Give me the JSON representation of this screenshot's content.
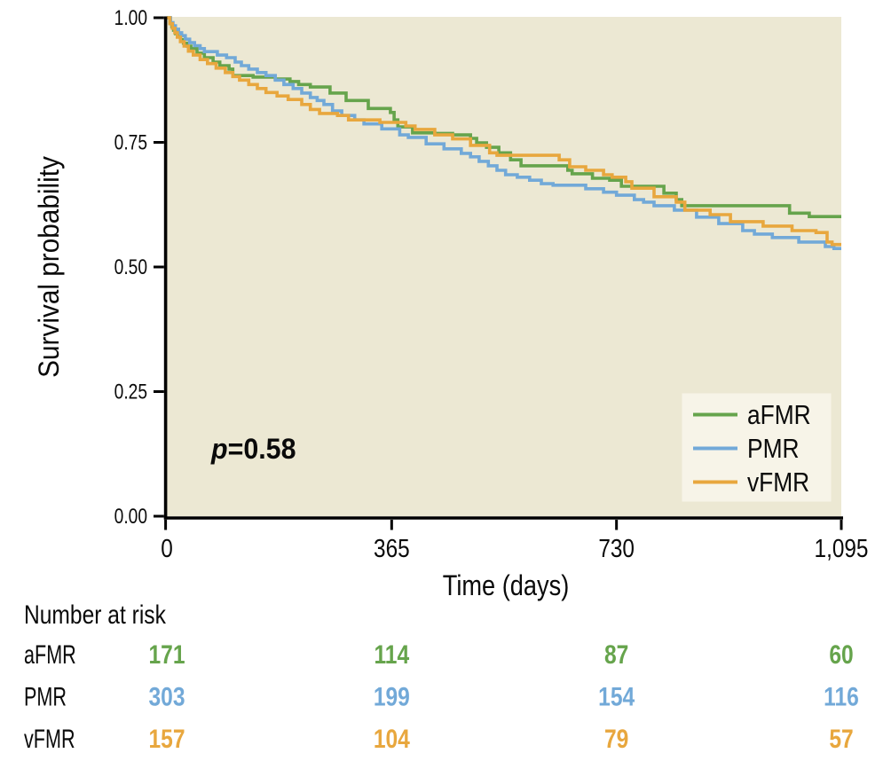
{
  "colors": {
    "plot_bg": "#ece8d3",
    "legend_bg": "#f7f4e8",
    "axis": "#000000",
    "text": "#0a0a0a"
  },
  "chart_data": {
    "type": "line",
    "subtype": "kaplan-meier-step",
    "title": "",
    "xlabel": "Time (days)",
    "ylabel": "Survival probability",
    "xlim": [
      0,
      1095
    ],
    "ylim": [
      0.0,
      1.0
    ],
    "grid": false,
    "legend_position": "bottom-right-inside",
    "xticks": [
      {
        "value": 0,
        "label": "0"
      },
      {
        "value": 365,
        "label": "365"
      },
      {
        "value": 730,
        "label": "730"
      },
      {
        "value": 1095,
        "label": "1,095"
      }
    ],
    "yticks": [
      {
        "value": 1.0,
        "label": "1.00"
      },
      {
        "value": 0.75,
        "label": "0.75"
      },
      {
        "value": 0.5,
        "label": "0.50"
      },
      {
        "value": 0.25,
        "label": "0.25"
      },
      {
        "value": 0.0,
        "label": "0.00"
      }
    ],
    "p_value": {
      "prefix": "p",
      "rest": "=0.58"
    },
    "series": [
      {
        "name": "aFMR",
        "color": "#66a44c",
        "points": [
          [
            0,
            1.0
          ],
          [
            5,
            0.989
          ],
          [
            8,
            0.982
          ],
          [
            11,
            0.975
          ],
          [
            14,
            0.968
          ],
          [
            18,
            0.962
          ],
          [
            22,
            0.956
          ],
          [
            27,
            0.949
          ],
          [
            33,
            0.943
          ],
          [
            39,
            0.938
          ],
          [
            49,
            0.929
          ],
          [
            61,
            0.92
          ],
          [
            75,
            0.911
          ],
          [
            86,
            0.904
          ],
          [
            101,
            0.897
          ],
          [
            107,
            0.884
          ],
          [
            140,
            0.881
          ],
          [
            176,
            0.877
          ],
          [
            200,
            0.872
          ],
          [
            214,
            0.866
          ],
          [
            233,
            0.861
          ],
          [
            265,
            0.849
          ],
          [
            291,
            0.834
          ],
          [
            327,
            0.818
          ],
          [
            363,
            0.81
          ],
          [
            369,
            0.795
          ],
          [
            375,
            0.781
          ],
          [
            399,
            0.769
          ],
          [
            435,
            0.768
          ],
          [
            464,
            0.765
          ],
          [
            493,
            0.758
          ],
          [
            503,
            0.749
          ],
          [
            519,
            0.74
          ],
          [
            539,
            0.729
          ],
          [
            558,
            0.715
          ],
          [
            575,
            0.703
          ],
          [
            651,
            0.694
          ],
          [
            658,
            0.687
          ],
          [
            691,
            0.678
          ],
          [
            719,
            0.674
          ],
          [
            738,
            0.662
          ],
          [
            807,
            0.648
          ],
          [
            827,
            0.635
          ],
          [
            836,
            0.623
          ],
          [
            1011,
            0.608
          ],
          [
            1043,
            0.601
          ]
        ]
      },
      {
        "name": "PMR",
        "color": "#72a9d8",
        "points": [
          [
            0,
            1.0
          ],
          [
            6,
            0.99
          ],
          [
            10,
            0.984
          ],
          [
            14,
            0.977
          ],
          [
            19,
            0.97
          ],
          [
            24,
            0.964
          ],
          [
            30,
            0.957
          ],
          [
            37,
            0.95
          ],
          [
            45,
            0.944
          ],
          [
            54,
            0.938
          ],
          [
            61,
            0.932
          ],
          [
            82,
            0.925
          ],
          [
            97,
            0.92
          ],
          [
            111,
            0.911
          ],
          [
            121,
            0.904
          ],
          [
            133,
            0.897
          ],
          [
            147,
            0.89
          ],
          [
            161,
            0.884
          ],
          [
            176,
            0.875
          ],
          [
            190,
            0.866
          ],
          [
            205,
            0.858
          ],
          [
            219,
            0.849
          ],
          [
            233,
            0.84
          ],
          [
            244,
            0.834
          ],
          [
            255,
            0.826
          ],
          [
            269,
            0.813
          ],
          [
            284,
            0.804
          ],
          [
            305,
            0.795
          ],
          [
            320,
            0.787
          ],
          [
            349,
            0.777
          ],
          [
            378,
            0.765
          ],
          [
            392,
            0.76
          ],
          [
            421,
            0.747
          ],
          [
            450,
            0.737
          ],
          [
            478,
            0.728
          ],
          [
            493,
            0.721
          ],
          [
            507,
            0.712
          ],
          [
            522,
            0.703
          ],
          [
            536,
            0.694
          ],
          [
            550,
            0.685
          ],
          [
            569,
            0.68
          ],
          [
            589,
            0.674
          ],
          [
            608,
            0.667
          ],
          [
            627,
            0.664
          ],
          [
            680,
            0.657
          ],
          [
            709,
            0.65
          ],
          [
            730,
            0.644
          ],
          [
            759,
            0.635
          ],
          [
            774,
            0.63
          ],
          [
            791,
            0.623
          ],
          [
            824,
            0.614
          ],
          [
            860,
            0.6
          ],
          [
            896,
            0.587
          ],
          [
            935,
            0.573
          ],
          [
            954,
            0.566
          ],
          [
            983,
            0.559
          ],
          [
            1026,
            0.55
          ],
          [
            1069,
            0.541
          ],
          [
            1083,
            0.537
          ]
        ]
      },
      {
        "name": "vFMR",
        "color": "#e8a73e",
        "points": [
          [
            0,
            1.0
          ],
          [
            5,
            0.988
          ],
          [
            9,
            0.979
          ],
          [
            13,
            0.97
          ],
          [
            17,
            0.961
          ],
          [
            22,
            0.952
          ],
          [
            28,
            0.943
          ],
          [
            35,
            0.933
          ],
          [
            43,
            0.925
          ],
          [
            54,
            0.916
          ],
          [
            66,
            0.908
          ],
          [
            80,
            0.899
          ],
          [
            95,
            0.89
          ],
          [
            107,
            0.882
          ],
          [
            118,
            0.875
          ],
          [
            133,
            0.866
          ],
          [
            147,
            0.858
          ],
          [
            161,
            0.85
          ],
          [
            179,
            0.843
          ],
          [
            197,
            0.836
          ],
          [
            219,
            0.826
          ],
          [
            233,
            0.816
          ],
          [
            248,
            0.808
          ],
          [
            277,
            0.804
          ],
          [
            295,
            0.795
          ],
          [
            346,
            0.79
          ],
          [
            388,
            0.783
          ],
          [
            403,
            0.776
          ],
          [
            435,
            0.765
          ],
          [
            464,
            0.757
          ],
          [
            493,
            0.744
          ],
          [
            524,
            0.729
          ],
          [
            536,
            0.724
          ],
          [
            637,
            0.715
          ],
          [
            654,
            0.701
          ],
          [
            680,
            0.694
          ],
          [
            709,
            0.685
          ],
          [
            723,
            0.68
          ],
          [
            745,
            0.671
          ],
          [
            755,
            0.658
          ],
          [
            791,
            0.641
          ],
          [
            827,
            0.63
          ],
          [
            841,
            0.614
          ],
          [
            882,
            0.605
          ],
          [
            915,
            0.591
          ],
          [
            968,
            0.582
          ],
          [
            1015,
            0.573
          ],
          [
            1054,
            0.569
          ],
          [
            1072,
            0.55
          ],
          [
            1080,
            0.545
          ]
        ]
      }
    ],
    "number_at_risk": {
      "header": "Number at risk",
      "time_points": [
        0,
        365,
        730,
        1095
      ],
      "rows": [
        {
          "name": "aFMR",
          "color": "#66a44c",
          "values": [
            "171",
            "114",
            "87",
            "60"
          ]
        },
        {
          "name": "PMR",
          "color": "#72a9d8",
          "values": [
            "303",
            "199",
            "154",
            "116"
          ]
        },
        {
          "name": "vFMR",
          "color": "#e8a73e",
          "values": [
            "157",
            "104",
            "79",
            "57"
          ]
        }
      ]
    }
  }
}
